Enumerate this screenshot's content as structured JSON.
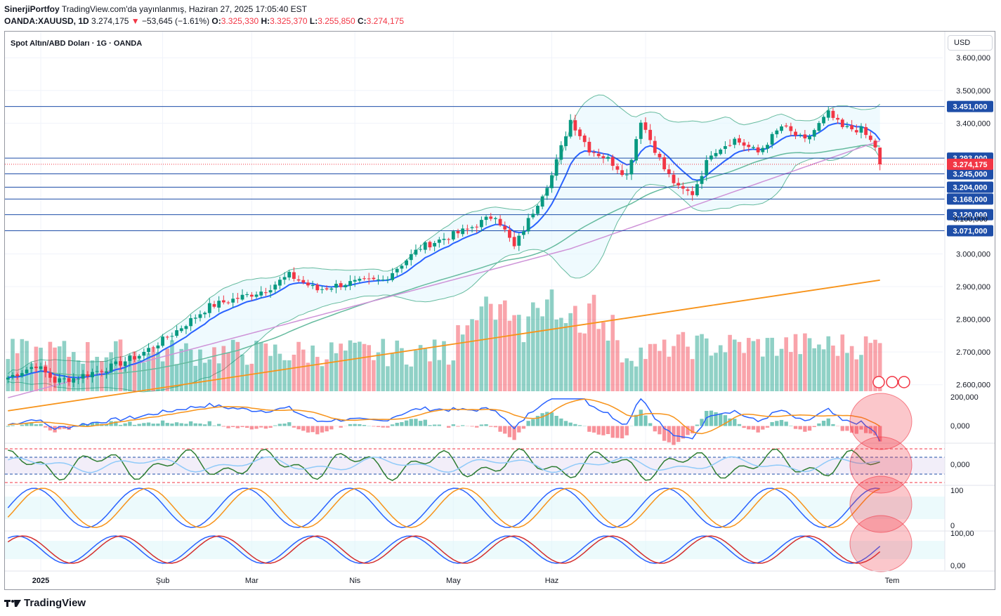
{
  "header": {
    "publisher": "SinerjiPortfoy",
    "published_text": "TradingView.com'da yayınlanmış, Haziran 27, 2025 17:05:40 EST",
    "symbol": "OANDA:XAUUSD, 1D",
    "last": "3.274,175",
    "change_arrow": "▼",
    "change": "−53,645 (−1.61%)",
    "o_label": "O:",
    "o_value": "3.325,330",
    "h_label": "H:",
    "h_value": "3.325,370",
    "l_label": "L:",
    "l_value": "3.255,850",
    "c_label": "C:",
    "c_value": "3.274,175"
  },
  "chart_title": "Spot Altın/ABD Doları · 1G · OANDA",
  "currency_button": "USD",
  "footer": {
    "brand": "TradingView"
  },
  "colors": {
    "up": "#089981",
    "down": "#f23645",
    "ema_fast": "#2962ff",
    "sma50": "#66bb9f",
    "sma100": "#ce93d8",
    "sma200": "#f7931a",
    "bb_fill": "#e1f5fe",
    "level": "#1e4ea8"
  },
  "chart_data": {
    "type": "candlestick",
    "x_labels": [
      "2025",
      "Şub",
      "Mar",
      "Nis",
      "May",
      "Haz",
      "Tem"
    ],
    "y_ticks": [
      "3.600,000",
      "3.500,000",
      "3.400,000",
      "3.000,000",
      "2.900,000",
      "2.800,000",
      "2.700,000",
      "2.600,000"
    ],
    "y_range": [
      2580,
      3680
    ],
    "levels": [
      {
        "value": 3451,
        "label": "3.451,000"
      },
      {
        "value": 3293,
        "label": "3.293,000"
      },
      {
        "value": 3245,
        "label": "3.245,000"
      },
      {
        "value": 3204,
        "label": "3.204,000"
      },
      {
        "value": 3168,
        "label": "3.168,000"
      },
      {
        "value": 3120,
        "label": "3.120,000"
      },
      {
        "value": 3071,
        "label": "3.071,000"
      }
    ],
    "partial_tick": "3.100,000",
    "current_price": {
      "value": 3274.175,
      "label": "3.274,175"
    },
    "anchors": [
      {
        "i": 0,
        "c": 2622
      },
      {
        "i": 6,
        "c": 2660
      },
      {
        "i": 10,
        "c": 2611
      },
      {
        "i": 14,
        "c": 2620
      },
      {
        "i": 22,
        "c": 2655
      },
      {
        "i": 28,
        "c": 2690
      },
      {
        "i": 35,
        "c": 2755
      },
      {
        "i": 43,
        "c": 2840
      },
      {
        "i": 55,
        "c": 2890
      },
      {
        "i": 60,
        "c": 2935
      },
      {
        "i": 66,
        "c": 2890
      },
      {
        "i": 72,
        "c": 2910
      },
      {
        "i": 80,
        "c": 2920
      },
      {
        "i": 88,
        "c": 3020
      },
      {
        "i": 98,
        "c": 3075
      },
      {
        "i": 104,
        "c": 3120
      },
      {
        "i": 108,
        "c": 3020
      },
      {
        "i": 112,
        "c": 3130
      },
      {
        "i": 116,
        "c": 3240
      },
      {
        "i": 120,
        "c": 3410
      },
      {
        "i": 124,
        "c": 3320
      },
      {
        "i": 128,
        "c": 3290
      },
      {
        "i": 132,
        "c": 3240
      },
      {
        "i": 135,
        "c": 3410
      },
      {
        "i": 140,
        "c": 3260
      },
      {
        "i": 143,
        "c": 3200
      },
      {
        "i": 146,
        "c": 3185
      },
      {
        "i": 150,
        "c": 3310
      },
      {
        "i": 155,
        "c": 3350
      },
      {
        "i": 160,
        "c": 3310
      },
      {
        "i": 165,
        "c": 3390
      },
      {
        "i": 170,
        "c": 3345
      },
      {
        "i": 175,
        "c": 3430
      },
      {
        "i": 178,
        "c": 3385
      },
      {
        "i": 182,
        "c": 3380
      },
      {
        "i": 185,
        "c": 3328
      },
      {
        "i": 186,
        "c": 3274
      }
    ],
    "indicators": {
      "macd_ticks": [
        "200,000",
        "0,000"
      ],
      "cci_ticks": [
        "0,000"
      ],
      "stoch_ticks": [
        "100",
        "0"
      ],
      "stochrsi_ticks": [
        "100,00",
        "0,00"
      ]
    }
  }
}
